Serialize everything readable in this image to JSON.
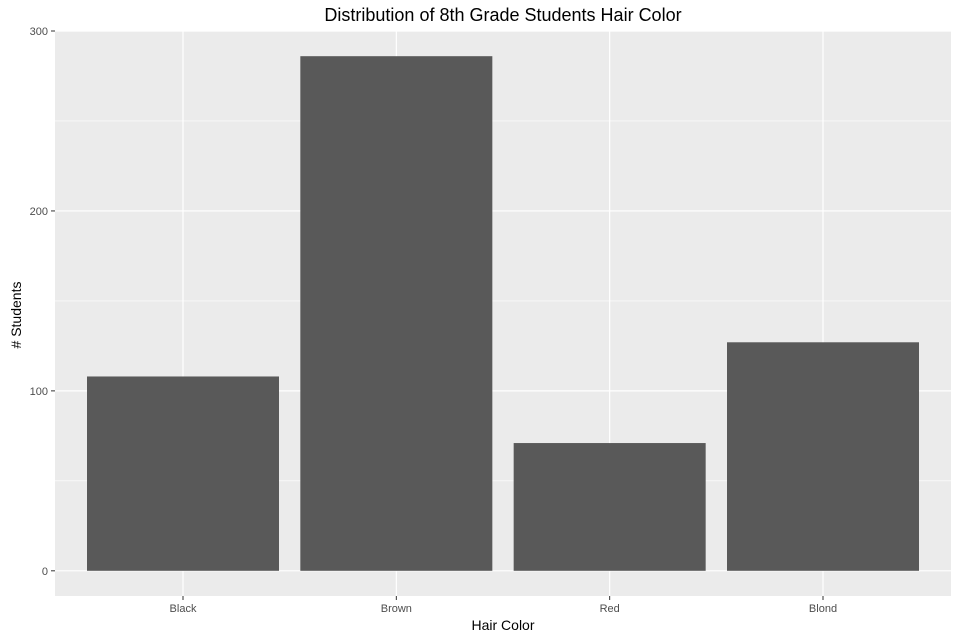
{
  "chart_data": {
    "type": "bar",
    "title": "Distribution of 8th Grade Students Hair Color",
    "xlabel": "Hair Color",
    "ylabel": "# Students",
    "categories": [
      "Black",
      "Brown",
      "Red",
      "Blond"
    ],
    "values": [
      108,
      286,
      71,
      127
    ],
    "ylim": [
      -14,
      300
    ],
    "yticks": [
      0,
      100,
      200,
      300
    ],
    "ytick_labels": [
      "0",
      "100",
      "200",
      "300"
    ],
    "grid": true,
    "legend": "none",
    "colors": {
      "bar": "#595959",
      "panel_background": "#ebebeb",
      "grid_major": "#ffffff",
      "tick_mark": "#333333"
    }
  }
}
